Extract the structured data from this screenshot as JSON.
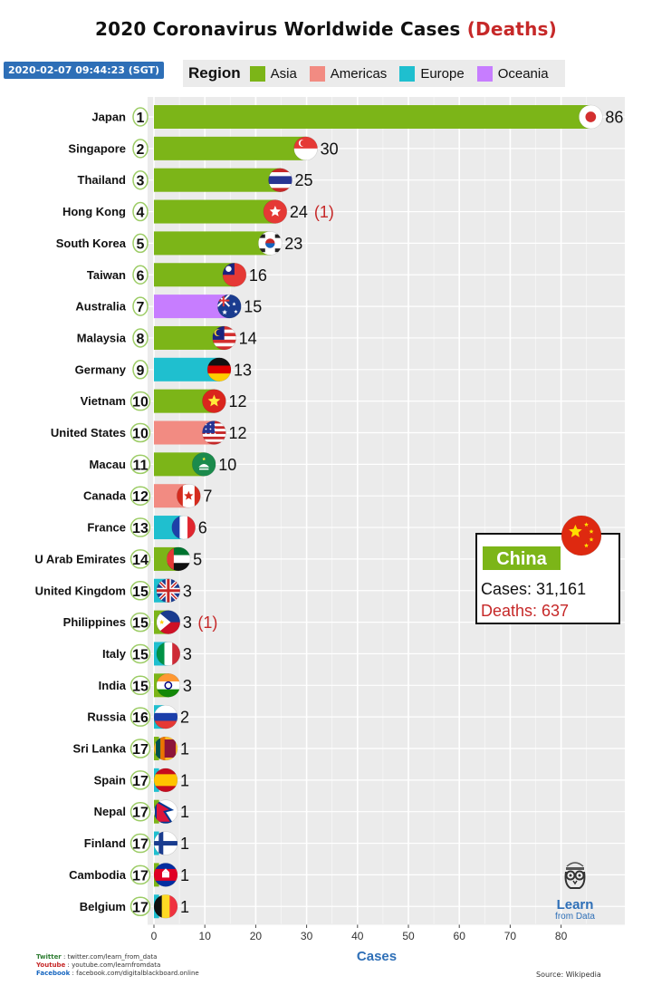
{
  "header": {
    "title_main": "2020 Coronavirus Worldwide Cases",
    "title_deaths": "(Deaths)",
    "timestamp": "2020-02-07 09:44:23 (SGT)"
  },
  "legend": {
    "title": "Region",
    "items": [
      {
        "label": "Asia",
        "color": "#7cb518"
      },
      {
        "label": "Americas",
        "color": "#f28b82"
      },
      {
        "label": "Europe",
        "color": "#1fbfcf"
      },
      {
        "label": "Oceania",
        "color": "#c77dff"
      }
    ]
  },
  "chart_data": {
    "type": "bar",
    "orientation": "horizontal",
    "xlabel": "Cases",
    "xlim": [
      0,
      92
    ],
    "xticks": [
      0,
      10,
      20,
      30,
      40,
      50,
      60,
      70,
      80
    ],
    "grid": true,
    "rows": [
      {
        "country": "Japan",
        "rank": "1",
        "cases": 86,
        "deaths": null,
        "region": "Asia",
        "flag": "japan-flag-icon"
      },
      {
        "country": "Singapore",
        "rank": "2",
        "cases": 30,
        "deaths": null,
        "region": "Asia",
        "flag": "singapore-flag-icon"
      },
      {
        "country": "Thailand",
        "rank": "3",
        "cases": 25,
        "deaths": null,
        "region": "Asia",
        "flag": "thailand-flag-icon"
      },
      {
        "country": "Hong Kong",
        "rank": "4",
        "cases": 24,
        "deaths": "(1)",
        "region": "Asia",
        "flag": "hong-kong-flag-icon"
      },
      {
        "country": "South Korea",
        "rank": "5",
        "cases": 23,
        "deaths": null,
        "region": "Asia",
        "flag": "south-korea-flag-icon"
      },
      {
        "country": "Taiwan",
        "rank": "6",
        "cases": 16,
        "deaths": null,
        "region": "Asia",
        "flag": "taiwan-flag-icon"
      },
      {
        "country": "Australia",
        "rank": "7",
        "cases": 15,
        "deaths": null,
        "region": "Oceania",
        "flag": "australia-flag-icon"
      },
      {
        "country": "Malaysia",
        "rank": "8",
        "cases": 14,
        "deaths": null,
        "region": "Asia",
        "flag": "malaysia-flag-icon"
      },
      {
        "country": "Germany",
        "rank": "9",
        "cases": 13,
        "deaths": null,
        "region": "Europe",
        "flag": "germany-flag-icon"
      },
      {
        "country": "Vietnam",
        "rank": "10",
        "cases": 12,
        "deaths": null,
        "region": "Asia",
        "flag": "vietnam-flag-icon"
      },
      {
        "country": "United States",
        "rank": "10",
        "cases": 12,
        "deaths": null,
        "region": "Americas",
        "flag": "united-states-flag-icon"
      },
      {
        "country": "Macau",
        "rank": "11",
        "cases": 10,
        "deaths": null,
        "region": "Asia",
        "flag": "macau-flag-icon"
      },
      {
        "country": "Canada",
        "rank": "12",
        "cases": 7,
        "deaths": null,
        "region": "Americas",
        "flag": "canada-flag-icon"
      },
      {
        "country": "France",
        "rank": "13",
        "cases": 6,
        "deaths": null,
        "region": "Europe",
        "flag": "france-flag-icon"
      },
      {
        "country": "U Arab Emirates",
        "rank": "14",
        "cases": 5,
        "deaths": null,
        "region": "Asia",
        "flag": "uae-flag-icon"
      },
      {
        "country": "United Kingdom",
        "rank": "15",
        "cases": 3,
        "deaths": null,
        "region": "Europe",
        "flag": "united-kingdom-flag-icon"
      },
      {
        "country": "Philippines",
        "rank": "15",
        "cases": 3,
        "deaths": "(1)",
        "region": "Asia",
        "flag": "philippines-flag-icon"
      },
      {
        "country": "Italy",
        "rank": "15",
        "cases": 3,
        "deaths": null,
        "region": "Europe",
        "flag": "italy-flag-icon"
      },
      {
        "country": "India",
        "rank": "15",
        "cases": 3,
        "deaths": null,
        "region": "Asia",
        "flag": "india-flag-icon"
      },
      {
        "country": "Russia",
        "rank": "16",
        "cases": 2,
        "deaths": null,
        "region": "Europe",
        "flag": "russia-flag-icon"
      },
      {
        "country": "Sri Lanka",
        "rank": "17",
        "cases": 1,
        "deaths": null,
        "region": "Asia",
        "flag": "sri-lanka-flag-icon"
      },
      {
        "country": "Spain",
        "rank": "17",
        "cases": 1,
        "deaths": null,
        "region": "Europe",
        "flag": "spain-flag-icon"
      },
      {
        "country": "Nepal",
        "rank": "17",
        "cases": 1,
        "deaths": null,
        "region": "Asia",
        "flag": "nepal-flag-icon"
      },
      {
        "country": "Finland",
        "rank": "17",
        "cases": 1,
        "deaths": null,
        "region": "Europe",
        "flag": "finland-flag-icon"
      },
      {
        "country": "Cambodia",
        "rank": "17",
        "cases": 1,
        "deaths": null,
        "region": "Asia",
        "flag": "cambodia-flag-icon"
      },
      {
        "country": "Belgium",
        "rank": "17",
        "cases": 1,
        "deaths": null,
        "region": "Europe",
        "flag": "belgium-flag-icon"
      }
    ],
    "callout": {
      "country": "China",
      "cases_text": "Cases: 31,161",
      "deaths_text": "Deaths: 637",
      "flag": "china-flag-icon"
    }
  },
  "footer": {
    "twitter_label": "Twitter",
    "twitter_text": ": twitter.com/learn_from_data",
    "youtube_label": "Youtube",
    "youtube_text": ": youtube.com/learnfromdata",
    "facebook_label": "Facebook",
    "facebook_text": ": facebook.com/digitalblackboard.online",
    "source": "Source: Wikipedia",
    "logo_learn": "Learn",
    "logo_from": "from Data"
  }
}
